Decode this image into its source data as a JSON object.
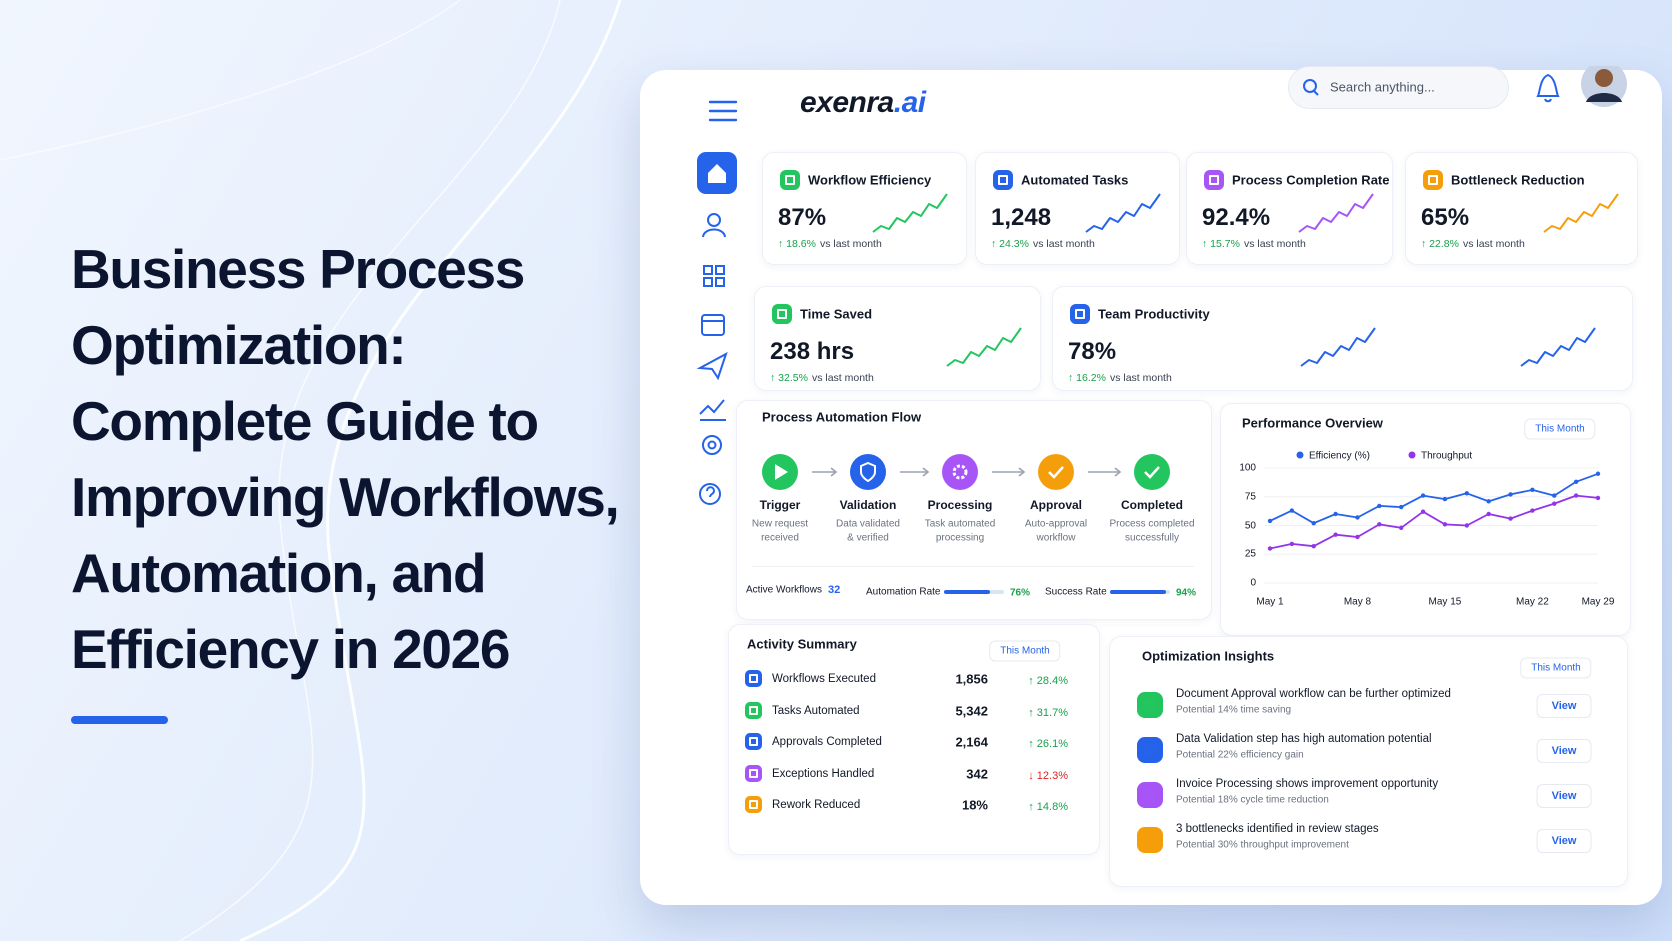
{
  "hero": {
    "title_lines": [
      "Business Process",
      "Optimization:",
      "Complete Guide to",
      "Improving Workflows,",
      "Automation, and",
      "Efficiency in 2026"
    ]
  },
  "dashboard": {
    "brand": {
      "name": "exenra",
      "suffix": ".ai"
    },
    "search_placeholder": "Search anything...",
    "kpis": [
      {
        "label": "Workflow Efficiency",
        "value": "87%",
        "change": "↑ 18.6%",
        "trend": "up",
        "change_note": "vs last month"
      },
      {
        "label": "Automated Tasks",
        "value": "1,248",
        "change": "↑ 24.3%",
        "trend": "up",
        "change_note": "vs last month"
      },
      {
        "label": "Process Completion Rate",
        "value": "92.4%",
        "change": "↑ 15.7%",
        "trend": "up",
        "change_note": "vs last month"
      },
      {
        "label": "Bottleneck Reduction",
        "value": "65%",
        "change": "↑ 22.8%",
        "trend": "up",
        "change_note": "vs last month"
      },
      {
        "label": "Time Saved",
        "value": "238 hrs",
        "change": "↑ 32.5%",
        "trend": "up",
        "change_note": "vs last month"
      },
      {
        "label": "Team Productivity",
        "value": "78%",
        "change": "↑ 16.2%",
        "trend": "up",
        "change_note": "vs last month"
      }
    ],
    "flow": {
      "title": "Process Automation Flow",
      "steps": [
        {
          "name": "Trigger",
          "desc": [
            "New request",
            "received"
          ]
        },
        {
          "name": "Validation",
          "desc": [
            "Data validated",
            "& verified"
          ]
        },
        {
          "name": "Processing",
          "desc": [
            "Task automated",
            "processing"
          ]
        },
        {
          "name": "Approval",
          "desc": [
            "Auto-approval",
            "workflow"
          ]
        },
        {
          "name": "Completed",
          "desc": [
            "Process completed",
            "successfully"
          ]
        }
      ],
      "active_workflows": {
        "label": "Active Workflows",
        "value": 32
      },
      "rates": [
        {
          "label": "Automation Rate",
          "value": 76,
          "value_label": "76%"
        },
        {
          "label": "Success Rate",
          "value": 94,
          "value_label": "94%"
        }
      ]
    },
    "activity": {
      "title": "Activity Summary",
      "filter": "This Month",
      "rows": [
        {
          "label": "Workflows Executed",
          "value": "1,856",
          "change": "↑ 28.4%",
          "trend": "up"
        },
        {
          "label": "Tasks Automated",
          "value": "5,342",
          "change": "↑ 31.7%",
          "trend": "up"
        },
        {
          "label": "Approvals Completed",
          "value": "2,164",
          "change": "↑ 26.1%",
          "trend": "up"
        },
        {
          "label": "Exceptions Handled",
          "value": "342",
          "change": "↓ 12.3%",
          "trend": "down"
        },
        {
          "label": "Rework Reduced",
          "value": "18%",
          "change": "↑ 14.8%",
          "trend": "up"
        }
      ]
    },
    "insights": {
      "title": "Optimization Insights",
      "filter": "This Month",
      "items": [
        {
          "title": "Document Approval workflow can be further optimized",
          "note": "Potential 14% time saving",
          "action": "View"
        },
        {
          "title": "Data Validation step has high automation potential",
          "note": "Potential 22% efficiency gain",
          "action": "View"
        },
        {
          "title": "Invoice Processing shows improvement opportunity",
          "note": "Potential 18% cycle time reduction",
          "action": "View"
        },
        {
          "title": "3 bottlenecks identified in review stages",
          "note": "Potential 30% throughput improvement",
          "action": "View"
        }
      ]
    }
  },
  "chart_data": {
    "type": "line",
    "title": "Performance Overview",
    "filter": "This Month",
    "categories": [
      "May 1",
      null,
      null,
      null,
      "May 8",
      null,
      null,
      null,
      "May 15",
      null,
      null,
      null,
      "May 22",
      null,
      null,
      "May 29"
    ],
    "series": [
      {
        "name": "Efficiency (%)",
        "color": "#2563eb",
        "values": [
          54,
          63,
          52,
          60,
          57,
          67,
          66,
          76,
          73,
          78,
          71,
          77,
          81,
          76,
          88,
          95
        ]
      },
      {
        "name": "Throughput",
        "color": "#9333ea",
        "values": [
          30,
          34,
          32,
          42,
          40,
          51,
          48,
          62,
          51,
          50,
          60,
          56,
          63,
          69,
          76,
          74
        ]
      }
    ],
    "ylim": [
      0,
      100
    ],
    "yticks": [
      0,
      25,
      50,
      75,
      100
    ],
    "grid": true
  }
}
